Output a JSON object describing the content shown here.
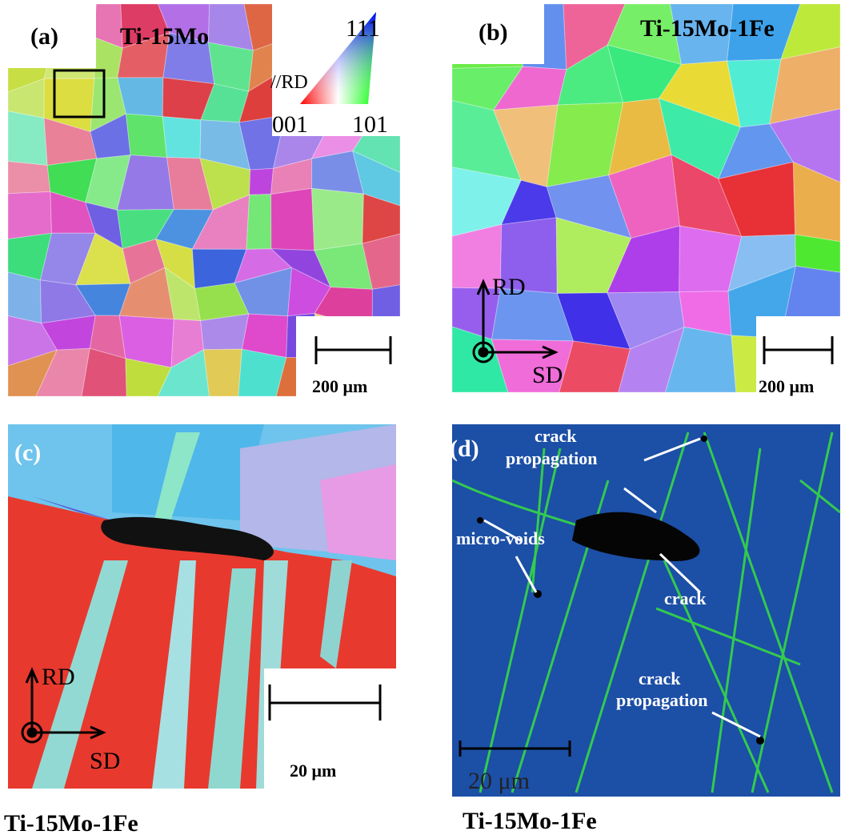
{
  "panels": [
    {
      "label": "(a)",
      "title": "Ti-15Mo",
      "scale_bar": "200 μm",
      "legend": {
        "direction": "//RD",
        "top": "111",
        "left": "001",
        "right": "101"
      }
    },
    {
      "label": "(b)",
      "title": "Ti-15Mo-1Fe",
      "scale_bar": "200 μm",
      "axes": [
        "RD",
        "SD"
      ]
    },
    {
      "label": "(c)",
      "scale_bar": "20 μm",
      "axes": [
        "RD",
        "SD"
      ],
      "caption": "Ti-15Mo-1Fe"
    },
    {
      "label": "(d)",
      "scale_bar": "20 μm",
      "caption": "Ti-15Mo-1Fe",
      "annotations": [
        [
          "crack",
          "propagation"
        ],
        [
          "micro-voids"
        ],
        [
          "crack"
        ],
        [
          "crack",
          "propagation"
        ]
      ]
    }
  ]
}
